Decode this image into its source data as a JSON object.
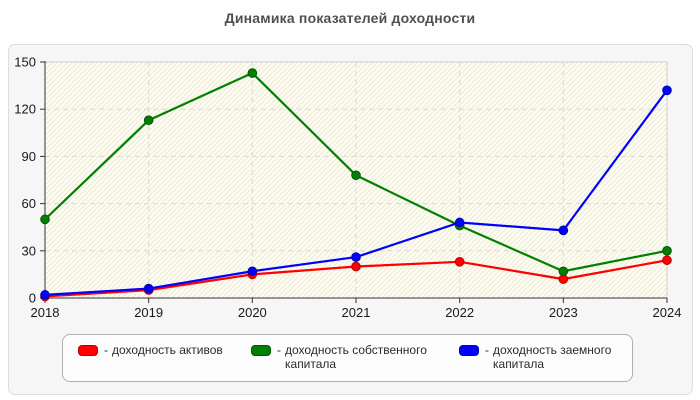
{
  "title": "Динамика показателей доходности",
  "panel": {
    "background": "#f6f6f6",
    "border": "#dddddd"
  },
  "plot": {
    "background": "#fffdf0",
    "hatch_color": "#e9e9dd",
    "grid_color": "#d9d9d9",
    "border_color": "#cfcfcf",
    "axis_color": "#333333",
    "tick_label_color": "#1a1a1a"
  },
  "legend": {
    "separator": "-",
    "background": "#fdfdfd",
    "border": "#b0b0b0"
  },
  "chart_data": {
    "type": "line",
    "title": "Динамика показателей доходности",
    "x": [
      "2018",
      "2019",
      "2020",
      "2021",
      "2022",
      "2023",
      "2024"
    ],
    "xlabel": "",
    "ylabel": "",
    "ylim": [
      0,
      150
    ],
    "yticks": [
      0,
      30,
      60,
      90,
      120,
      150
    ],
    "grid": "dashed",
    "legend_position": "bottom",
    "series": [
      {
        "name": "доходность активов",
        "color": "#ff0000",
        "edge": "#b30000",
        "values": [
          1,
          5,
          15,
          20,
          23,
          12,
          24
        ]
      },
      {
        "name": "доходность собственного капитала",
        "color": "#008000",
        "edge": "#005500",
        "values": [
          50,
          113,
          143,
          78,
          46,
          17,
          30
        ]
      },
      {
        "name": "доходность заемного капитала",
        "color": "#0000ff",
        "edge": "#0000b3",
        "values": [
          2,
          6,
          17,
          26,
          48,
          43,
          132
        ]
      }
    ]
  }
}
